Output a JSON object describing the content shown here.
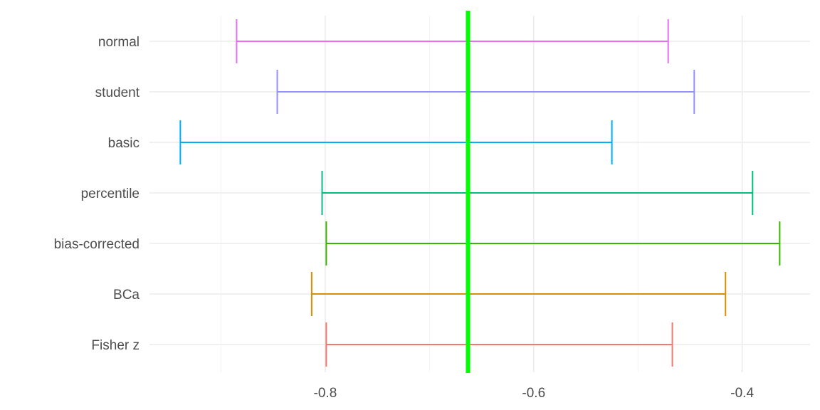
{
  "chart_data": {
    "type": "errorbar",
    "title": "",
    "xlabel": "",
    "ylabel": "",
    "xlim": [
      -0.9686,
      -0.3349
    ],
    "x_ticks": [
      -0.8,
      -0.6,
      -0.4
    ],
    "x_tick_labels": [
      "-0.8",
      "-0.6",
      "-0.4"
    ],
    "grid": true,
    "legend": "none",
    "reference_line": {
      "value": -0.663,
      "color": "#00ff00"
    },
    "categories": [
      "normal",
      "student",
      "basic",
      "percentile",
      "bias-corrected",
      "BCa",
      "Fisher z"
    ],
    "intervals": [
      {
        "label": "normal",
        "lower": -0.885,
        "upper": -0.471,
        "color": "#e76bf3"
      },
      {
        "label": "student",
        "lower": -0.846,
        "upper": -0.446,
        "color": "#9590ff"
      },
      {
        "label": "basic",
        "lower": -0.939,
        "upper": -0.525,
        "color": "#00b0f6"
      },
      {
        "label": "percentile",
        "lower": -0.803,
        "upper": -0.39,
        "color": "#00bf7d"
      },
      {
        "label": "bias-corrected",
        "lower": -0.799,
        "upper": -0.364,
        "color": "#39b600"
      },
      {
        "label": "BCa",
        "lower": -0.813,
        "upper": -0.416,
        "color": "#d89000"
      },
      {
        "label": "Fisher z",
        "lower": -0.799,
        "upper": -0.467,
        "color": "#f8766d"
      }
    ]
  }
}
